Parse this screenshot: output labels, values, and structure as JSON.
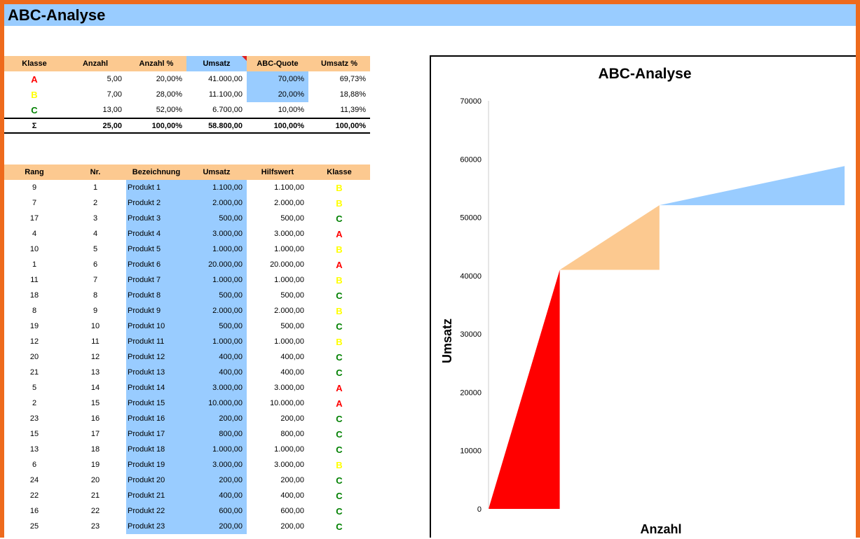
{
  "window": {
    "title": "ABC-Analyse"
  },
  "summary": {
    "headers": [
      "Klasse",
      "Anzahl",
      "Anzahl %",
      "Umsatz",
      "ABC-Quote",
      "Umsatz %"
    ],
    "rows": [
      {
        "klasse": "A",
        "anzahl": "5,00",
        "anzahl_pct": "20,00%",
        "umsatz": "41.000,00",
        "quote": "70,00%",
        "umsatz_pct": "69,73%"
      },
      {
        "klasse": "B",
        "anzahl": "7,00",
        "anzahl_pct": "28,00%",
        "umsatz": "11.100,00",
        "quote": "20,00%",
        "umsatz_pct": "18,88%"
      },
      {
        "klasse": "C",
        "anzahl": "13,00",
        "anzahl_pct": "52,00%",
        "umsatz": "6.700,00",
        "quote": "10,00%",
        "umsatz_pct": "11,39%"
      }
    ],
    "total": {
      "label": "Σ",
      "anzahl": "25,00",
      "anzahl_pct": "100,00%",
      "umsatz": "58.800,00",
      "quote": "100,00%",
      "umsatz_pct": "100,00%"
    }
  },
  "products": {
    "headers": [
      "Rang",
      "Nr.",
      "Bezeichnung",
      "Umsatz",
      "Hilfswert",
      "Klasse"
    ],
    "rows": [
      {
        "rang": "9",
        "nr": "1",
        "name": "Produkt 1",
        "umsatz": "1.100,00",
        "hilf": "1.100,00",
        "klasse": "B"
      },
      {
        "rang": "7",
        "nr": "2",
        "name": "Produkt 2",
        "umsatz": "2.000,00",
        "hilf": "2.000,00",
        "klasse": "B"
      },
      {
        "rang": "17",
        "nr": "3",
        "name": "Produkt 3",
        "umsatz": "500,00",
        "hilf": "500,00",
        "klasse": "C"
      },
      {
        "rang": "4",
        "nr": "4",
        "name": "Produkt 4",
        "umsatz": "3.000,00",
        "hilf": "3.000,00",
        "klasse": "A"
      },
      {
        "rang": "10",
        "nr": "5",
        "name": "Produkt 5",
        "umsatz": "1.000,00",
        "hilf": "1.000,00",
        "klasse": "B"
      },
      {
        "rang": "1",
        "nr": "6",
        "name": "Produkt 6",
        "umsatz": "20.000,00",
        "hilf": "20.000,00",
        "klasse": "A"
      },
      {
        "rang": "11",
        "nr": "7",
        "name": "Produkt 7",
        "umsatz": "1.000,00",
        "hilf": "1.000,00",
        "klasse": "B"
      },
      {
        "rang": "18",
        "nr": "8",
        "name": "Produkt 8",
        "umsatz": "500,00",
        "hilf": "500,00",
        "klasse": "C"
      },
      {
        "rang": "8",
        "nr": "9",
        "name": "Produkt 9",
        "umsatz": "2.000,00",
        "hilf": "2.000,00",
        "klasse": "B"
      },
      {
        "rang": "19",
        "nr": "10",
        "name": "Produkt 10",
        "umsatz": "500,00",
        "hilf": "500,00",
        "klasse": "C"
      },
      {
        "rang": "12",
        "nr": "11",
        "name": "Produkt 11",
        "umsatz": "1.000,00",
        "hilf": "1.000,00",
        "klasse": "B"
      },
      {
        "rang": "20",
        "nr": "12",
        "name": "Produkt 12",
        "umsatz": "400,00",
        "hilf": "400,00",
        "klasse": "C"
      },
      {
        "rang": "21",
        "nr": "13",
        "name": "Produkt 13",
        "umsatz": "400,00",
        "hilf": "400,00",
        "klasse": "C"
      },
      {
        "rang": "5",
        "nr": "14",
        "name": "Produkt 14",
        "umsatz": "3.000,00",
        "hilf": "3.000,00",
        "klasse": "A"
      },
      {
        "rang": "2",
        "nr": "15",
        "name": "Produkt 15",
        "umsatz": "10.000,00",
        "hilf": "10.000,00",
        "klasse": "A"
      },
      {
        "rang": "23",
        "nr": "16",
        "name": "Produkt 16",
        "umsatz": "200,00",
        "hilf": "200,00",
        "klasse": "C"
      },
      {
        "rang": "15",
        "nr": "17",
        "name": "Produkt 17",
        "umsatz": "800,00",
        "hilf": "800,00",
        "klasse": "C"
      },
      {
        "rang": "13",
        "nr": "18",
        "name": "Produkt 18",
        "umsatz": "1.000,00",
        "hilf": "1.000,00",
        "klasse": "C"
      },
      {
        "rang": "6",
        "nr": "19",
        "name": "Produkt 19",
        "umsatz": "3.000,00",
        "hilf": "3.000,00",
        "klasse": "B"
      },
      {
        "rang": "24",
        "nr": "20",
        "name": "Produkt 20",
        "umsatz": "200,00",
        "hilf": "200,00",
        "klasse": "C"
      },
      {
        "rang": "22",
        "nr": "21",
        "name": "Produkt 21",
        "umsatz": "400,00",
        "hilf": "400,00",
        "klasse": "C"
      },
      {
        "rang": "16",
        "nr": "22",
        "name": "Produkt 22",
        "umsatz": "600,00",
        "hilf": "600,00",
        "klasse": "C"
      },
      {
        "rang": "25",
        "nr": "23",
        "name": "Produkt 23",
        "umsatz": "200,00",
        "hilf": "200,00",
        "klasse": "C"
      }
    ]
  },
  "colors": {
    "A": "#ff0000",
    "B": "#fcc990",
    "C": "#99ccff",
    "class_A_text": "#ff0000",
    "class_B_text": "#ffff00",
    "class_C_text": "#008000"
  },
  "chart_data": {
    "type": "area",
    "title": "ABC-Analyse",
    "xlabel": "Anzahl",
    "ylabel": "Umsatz",
    "ylim": [
      0,
      70000
    ],
    "yticks": [
      "0",
      "10000",
      "20000",
      "30000",
      "40000",
      "50000",
      "60000",
      "70000"
    ],
    "xlim": [
      0,
      25
    ],
    "grid": false,
    "legend": "none",
    "series": [
      {
        "class": "A",
        "x": [
          0,
          5
        ],
        "y_from": [
          0,
          41000
        ],
        "base": 0
      },
      {
        "class": "B",
        "x": [
          5,
          12
        ],
        "y_from": [
          41000,
          52100
        ],
        "base": 41000
      },
      {
        "class": "C",
        "x": [
          12,
          25
        ],
        "y_from": [
          52100,
          58800
        ],
        "base": 52100
      }
    ]
  }
}
